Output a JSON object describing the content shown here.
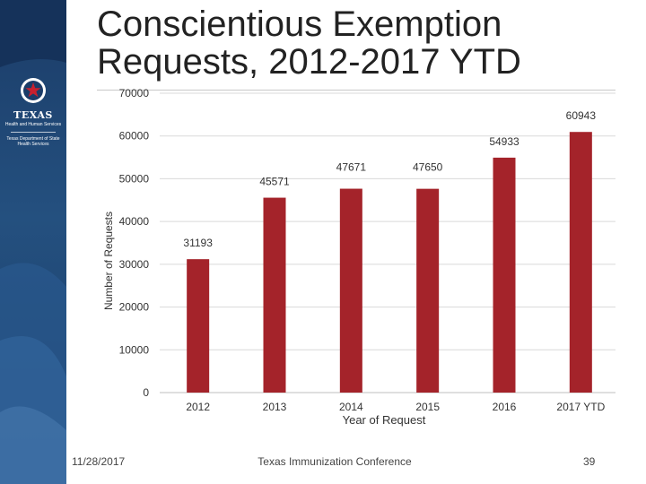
{
  "slide": {
    "title_line1": "Conscientious Exemption",
    "title_line2": "Requests, 2012-2017 YTD",
    "footer_date": "11/28/2017",
    "footer_conference": "Texas Immunization Conference",
    "page_number": "39"
  },
  "logo": {
    "name": "TEXAS",
    "subtitle": "Health and Human Services",
    "subtitle2_line1": "Texas Department of State",
    "subtitle2_line2": "Health Services"
  },
  "colors": {
    "bar": "#A4232A",
    "sidebar_top": "#1B3C68",
    "sidebar_accent": "#2C5D93",
    "grid": "#D9D9D9",
    "axis_text": "#333333"
  },
  "chart_data": {
    "type": "bar",
    "categories": [
      "2012",
      "2013",
      "2014",
      "2015",
      "2016",
      "2017 YTD"
    ],
    "values": [
      31193,
      45571,
      47671,
      47650,
      54933,
      60943
    ],
    "data_labels": [
      "31193",
      "45571",
      "47671",
      "47650",
      "54933",
      "60943"
    ],
    "xlabel": "Year of Request",
    "ylabel": "Number of Requests",
    "ylim": [
      0,
      70000
    ],
    "yticks": [
      0,
      10000,
      20000,
      30000,
      40000,
      50000,
      60000,
      70000
    ],
    "ytick_labels": [
      "0",
      "10000",
      "20000",
      "30000",
      "40000",
      "50000",
      "60000",
      "70000"
    ],
    "grid": true,
    "legend": "none"
  }
}
